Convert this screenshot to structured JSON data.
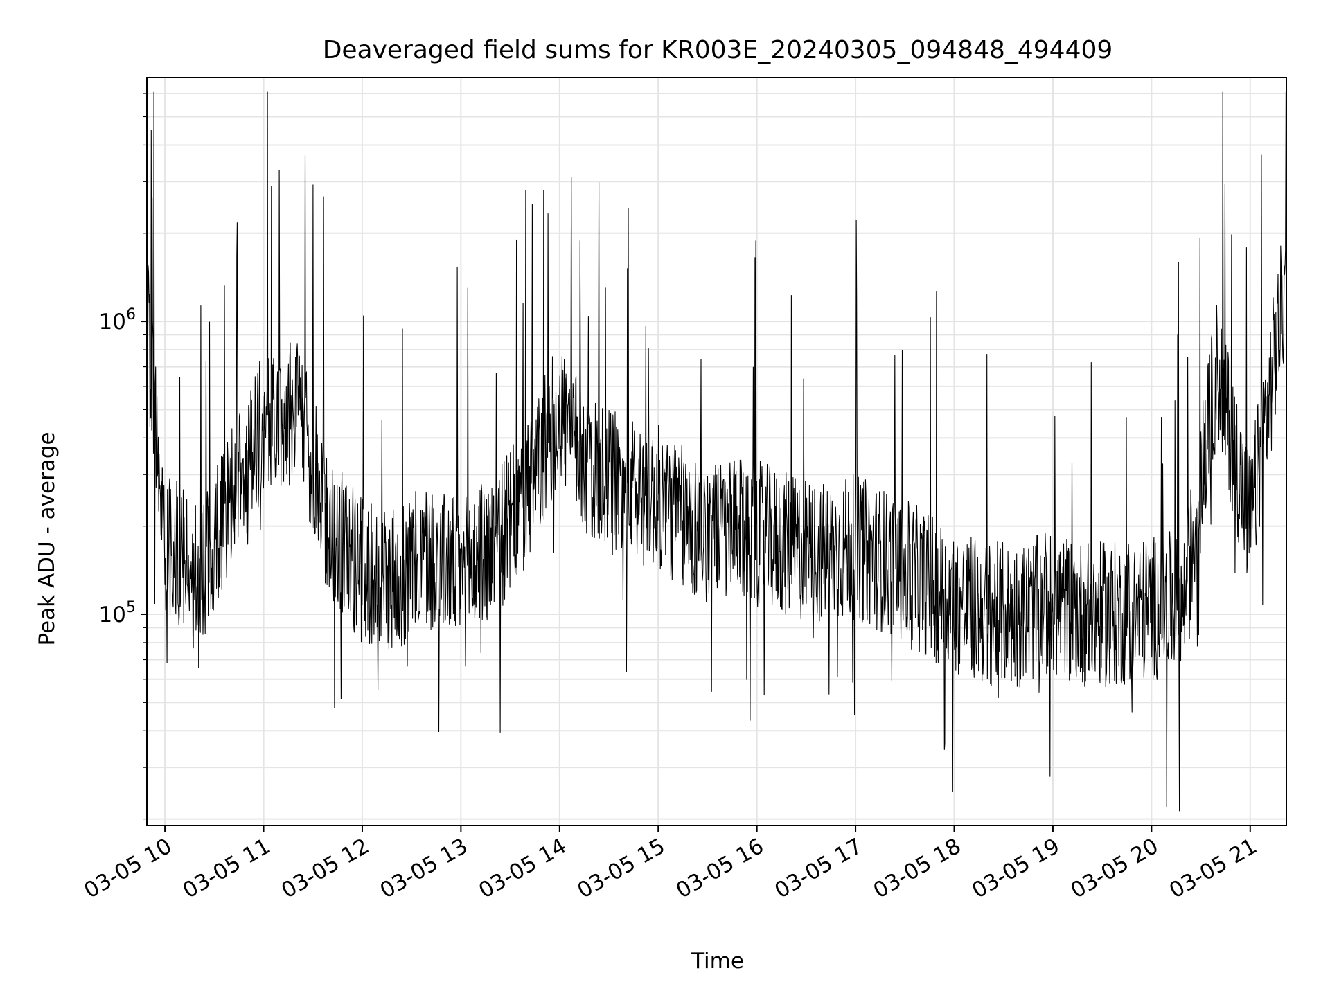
{
  "chart_data": {
    "type": "line",
    "title": "Deaveraged field sums for KR003E_20240305_094848_494409",
    "xlabel": "Time",
    "ylabel": "Peak ADU - average",
    "yscale": "log",
    "grid": true,
    "legend": "none",
    "line_color": "#000000",
    "xlim": [
      "2024-03-05 09:49",
      "2024-03-05 21:22"
    ],
    "ylim": [
      19000,
      6800000
    ],
    "x_ticks": [
      "03-05 10",
      "03-05 11",
      "03-05 12",
      "03-05 13",
      "03-05 14",
      "03-05 15",
      "03-05 16",
      "03-05 17",
      "03-05 18",
      "03-05 19",
      "03-05 20",
      "03-05 21"
    ],
    "y_ticks": [
      "10^5",
      "10^6"
    ],
    "y_tick_labels": [
      {
        "base": "10",
        "exp": "5"
      },
      {
        "base": "10",
        "exp": "6"
      }
    ],
    "series": [
      {
        "x": [
          "2024-03-05 09:49",
          "2024-03-05 10:00",
          "2024-03-05 10:20",
          "2024-03-05 10:40",
          "2024-03-05 11:00",
          "2024-03-05 11:20",
          "2024-03-05 11:40",
          "2024-03-05 12:00",
          "2024-03-05 12:20",
          "2024-03-05 12:40",
          "2024-03-05 13:00",
          "2024-03-05 13:20",
          "2024-03-05 13:40",
          "2024-03-05 14:00",
          "2024-03-05 14:20",
          "2024-03-05 14:40",
          "2024-03-05 15:00",
          "2024-03-05 15:20",
          "2024-03-05 15:40",
          "2024-03-05 16:00",
          "2024-03-05 16:20",
          "2024-03-05 16:40",
          "2024-03-05 17:00",
          "2024-03-05 17:20",
          "2024-03-05 17:40",
          "2024-03-05 18:00",
          "2024-03-05 18:20",
          "2024-03-05 18:40",
          "2024-03-05 19:00",
          "2024-03-05 19:20",
          "2024-03-05 19:40",
          "2024-03-05 20:00",
          "2024-03-05 20:20",
          "2024-03-05 20:40",
          "2024-03-05 21:00",
          "2024-03-05 21:22"
        ],
        "y": [
          1000000,
          180000,
          130000,
          250000,
          450000,
          500000,
          200000,
          140000,
          130000,
          160000,
          140000,
          170000,
          250000,
          500000,
          300000,
          270000,
          250000,
          200000,
          190000,
          190000,
          170000,
          160000,
          170000,
          150000,
          130000,
          110000,
          100000,
          100000,
          110000,
          100000,
          100000,
          105000,
          110000,
          700000,
          200000,
          1400000
        ]
      }
    ]
  }
}
